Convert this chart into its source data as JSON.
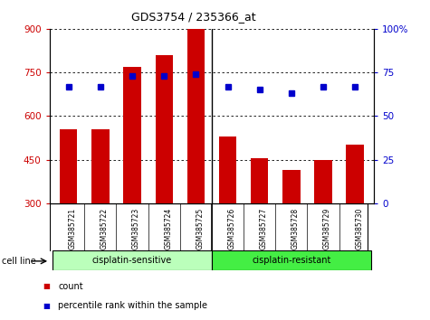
{
  "title": "GDS3754 / 235366_at",
  "samples": [
    "GSM385721",
    "GSM385722",
    "GSM385723",
    "GSM385724",
    "GSM385725",
    "GSM385726",
    "GSM385727",
    "GSM385728",
    "GSM385729",
    "GSM385730"
  ],
  "counts": [
    555,
    555,
    770,
    810,
    900,
    530,
    455,
    415,
    450,
    500
  ],
  "percentile_ranks": [
    67,
    67,
    73,
    73,
    74,
    67,
    65,
    63,
    67,
    67
  ],
  "ylim_left": [
    300,
    900
  ],
  "ylim_right": [
    0,
    100
  ],
  "yticks_left": [
    300,
    450,
    600,
    750,
    900
  ],
  "yticks_right": [
    0,
    25,
    50,
    75,
    100
  ],
  "groups": [
    {
      "label": "cisplatin-sensitive",
      "indices": [
        0,
        1,
        2,
        3,
        4
      ],
      "color": "#bbffbb"
    },
    {
      "label": "cisplatin-resistant",
      "indices": [
        5,
        6,
        7,
        8,
        9
      ],
      "color": "#44ee44"
    }
  ],
  "bar_color": "#cc0000",
  "dot_color": "#0000cc",
  "bar_bottom": 300,
  "legend": [
    {
      "label": "count",
      "color": "#cc0000"
    },
    {
      "label": "percentile rank within the sample",
      "color": "#0000cc"
    }
  ],
  "cell_line_label": "cell line"
}
